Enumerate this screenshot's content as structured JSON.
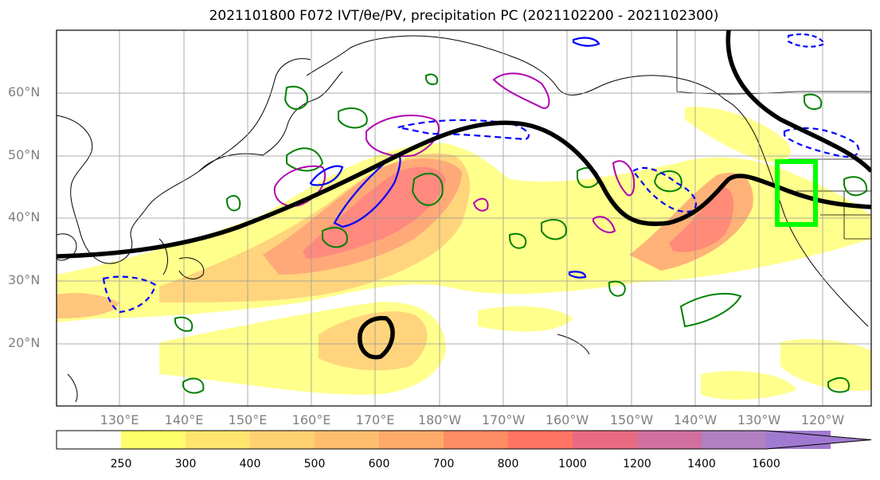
{
  "title": "2021101800 F072 IVT/θe/PV, precipitation PC (2021102200 - 2021102300)",
  "map": {
    "lat_labels": [
      "60°N",
      "50°N",
      "40°N",
      "30°N",
      "20°N"
    ],
    "lon_labels": [
      "130°E",
      "140°E",
      "150°E",
      "160°E",
      "170°E",
      "180°W",
      "170°W",
      "160°W",
      "150°W",
      "140°W",
      "130°W",
      "120°W"
    ],
    "target_box_color": "#00ff00",
    "contour_colors": {
      "theta_e": "#000000",
      "pv": "#0000ff",
      "precip": "#008000",
      "ivt_alt": "#b000b0"
    }
  },
  "colorbar": {
    "ticks": [
      "250",
      "300",
      "400",
      "500",
      "600",
      "700",
      "800",
      "1000",
      "1200",
      "1400",
      "1600"
    ],
    "colors": [
      "#ffffff",
      "#ffff6a",
      "#ffe56e",
      "#ffd070",
      "#ffbe6e",
      "#ffaa6a",
      "#ff8c64",
      "#ff7464",
      "#e86a80",
      "#d070a0",
      "#b080c0",
      "#a07ad0"
    ]
  }
}
